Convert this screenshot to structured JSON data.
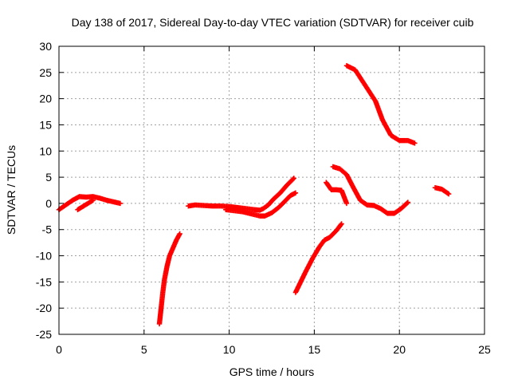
{
  "chart_data": {
    "type": "scatter",
    "title": "Day 138 of 2017, Sidereal Day-to-day VTEC variation (SDTVAR) for receiver cuib",
    "xlabel": "GPS time / hours",
    "ylabel": "SDTVAR / TECUs",
    "xlim": [
      0,
      25
    ],
    "ylim": [
      -25,
      30
    ],
    "xticks": [
      0,
      5,
      10,
      15,
      20,
      25
    ],
    "yticks": [
      -25,
      -20,
      -15,
      -10,
      -5,
      0,
      5,
      10,
      15,
      20,
      25,
      30
    ],
    "grid": true,
    "marker": "plus",
    "color": "#ff0000",
    "series": [
      {
        "x": [
          0,
          0.4,
          0.8,
          1.2,
          1.6,
          2.0,
          2.4,
          2.8,
          3.2,
          3.6
        ],
        "y": [
          -1.2,
          -0.3,
          0.6,
          1.3,
          1.2,
          1.3,
          1.0,
          0.6,
          0.3,
          0.0
        ]
      },
      {
        "x": [
          1.1,
          1.4,
          1.7,
          2.0
        ],
        "y": [
          -1.2,
          -0.6,
          0.0,
          0.6
        ]
      },
      {
        "x": [
          5.9,
          6.0,
          6.1,
          6.2,
          6.35,
          6.5,
          6.7,
          6.9,
          7.1
        ],
        "y": [
          -23,
          -20,
          -17,
          -14.5,
          -12,
          -10,
          -8.5,
          -7,
          -5.8
        ]
      },
      {
        "x": [
          7.6,
          8.0,
          8.5,
          9.0,
          9.5,
          10.0,
          10.5,
          11.0,
          11.5,
          11.8,
          12.0,
          12.3,
          12.6,
          13.0,
          13.4,
          13.8
        ],
        "y": [
          -0.5,
          -0.3,
          -0.4,
          -0.5,
          -0.5,
          -0.6,
          -0.8,
          -1.0,
          -1.2,
          -1.3,
          -1.0,
          -0.3,
          0.8,
          2.0,
          3.5,
          4.8
        ]
      },
      {
        "x": [
          9.8,
          10.3,
          10.8,
          11.3,
          11.8,
          12.1,
          12.5,
          12.9,
          13.3,
          13.6,
          13.9
        ],
        "y": [
          -1.2,
          -1.4,
          -1.6,
          -2.0,
          -2.4,
          -2.4,
          -1.8,
          -0.8,
          0.5,
          1.5,
          2.0
        ]
      },
      {
        "x": [
          13.9,
          14.2,
          14.5,
          14.9,
          15.3,
          15.6,
          15.9,
          16.3,
          16.6
        ],
        "y": [
          -17,
          -15,
          -13,
          -10.5,
          -8.3,
          -7.0,
          -6.5,
          -5.2,
          -3.9
        ]
      },
      {
        "x": [
          15.7,
          16.0,
          16.3,
          16.6,
          16.9
        ],
        "y": [
          4.0,
          2.6,
          2.6,
          2.5,
          0.0
        ]
      },
      {
        "x": [
          16.1,
          16.5,
          16.9,
          17.3,
          17.7,
          18.1,
          18.5,
          18.9,
          19.3,
          19.7,
          20.1,
          20.5
        ],
        "y": [
          7.0,
          6.6,
          5.5,
          3.0,
          0.6,
          -0.3,
          -0.4,
          -1.0,
          -1.9,
          -1.9,
          -1.0,
          0.2
        ]
      },
      {
        "x": [
          16.9,
          17.4,
          17.8,
          18.2,
          18.6,
          19.0,
          19.5,
          20.0,
          20.5,
          20.9
        ],
        "y": [
          26.3,
          25.5,
          23.5,
          21.5,
          19.5,
          16.0,
          13.0,
          12.0,
          12.0,
          11.5
        ]
      },
      {
        "x": [
          22.1,
          22.5,
          22.9
        ],
        "y": [
          3.0,
          2.7,
          1.8
        ]
      }
    ]
  }
}
